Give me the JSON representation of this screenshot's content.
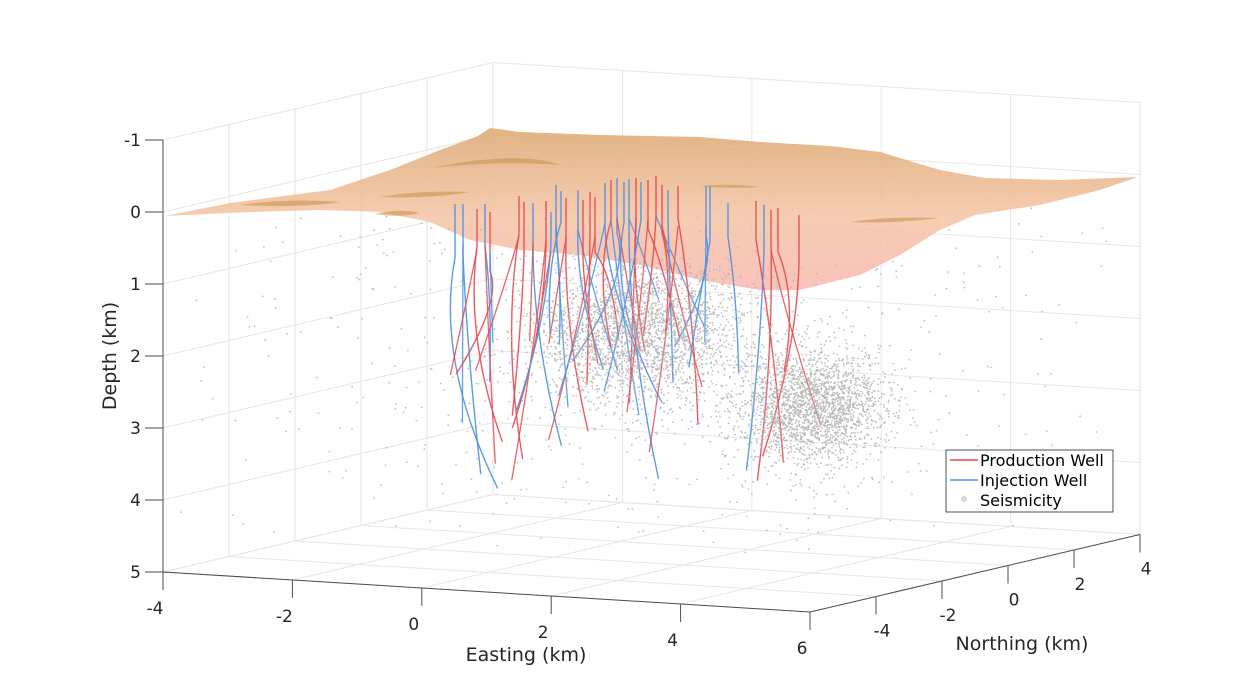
{
  "chart_data": {
    "type": "scatter",
    "subtype": "3d-scatter-with-surface-and-well-trajectories",
    "title": "",
    "xlabel": "Easting (km)",
    "ylabel": "Northing (km)",
    "zlabel": "Depth (km)",
    "xlim": [
      -4,
      6
    ],
    "ylim": [
      -6,
      4
    ],
    "zlim": [
      -1,
      5
    ],
    "z_reversed": true,
    "grid": true,
    "x_ticks": [
      "-4",
      "-2",
      "0",
      "2",
      "4",
      "6"
    ],
    "x_tick_values": [
      -4,
      -2,
      0,
      2,
      4,
      6
    ],
    "y_ticks": [
      "-4",
      "-2",
      "0",
      "2",
      "4"
    ],
    "y_tick_values": [
      -4,
      -2,
      0,
      2,
      4
    ],
    "z_ticks": [
      "-1",
      "0",
      "1",
      "2",
      "3",
      "4",
      "5"
    ],
    "z_tick_values": [
      -1,
      0,
      1,
      2,
      3,
      4,
      5
    ],
    "legend_position": "bottom-right",
    "legend": [
      {
        "label": "Production Well",
        "color": "#e8474c",
        "marker": "line"
      },
      {
        "label": "Injection Well",
        "color": "#4a90e2",
        "marker": "line"
      },
      {
        "label": "Seismicity",
        "color": "#b4b4b4",
        "marker": "circle"
      }
    ],
    "surface": {
      "name": "Ground surface",
      "color_top": "#dca66e",
      "color_bottom": "#f8b8b0",
      "approx_depth_range_km": [
        -0.6,
        1.0
      ]
    },
    "seismicity_clusters": [
      {
        "center": [
          0.6,
          -0.5,
          2.0
        ],
        "spread": [
          1.2,
          1.6,
          0.7
        ],
        "count": 2600
      },
      {
        "center": [
          3.6,
          -1.2,
          2.8
        ],
        "spread": [
          0.8,
          1.0,
          0.55
        ],
        "count": 2200
      },
      {
        "center": [
          1.0,
          0.0,
          1.5
        ],
        "spread": [
          3.5,
          4.0,
          1.6
        ],
        "count": 600
      }
    ],
    "well_fields": [
      {
        "type": "production",
        "count": 40,
        "head_depth_km": [
          -0.2,
          0.6
        ],
        "bottom_depth_km": [
          1.8,
          3.0
        ]
      },
      {
        "type": "injection",
        "count": 45,
        "head_depth_km": [
          -0.2,
          0.6
        ],
        "bottom_depth_km": [
          1.8,
          3.5
        ]
      }
    ]
  },
  "colors": {
    "production": "#e8474c",
    "injection": "#4a90e2",
    "seismicity": "#b4b4b4",
    "axis": "#4d4d4d",
    "grid": "#e6e6e6"
  }
}
